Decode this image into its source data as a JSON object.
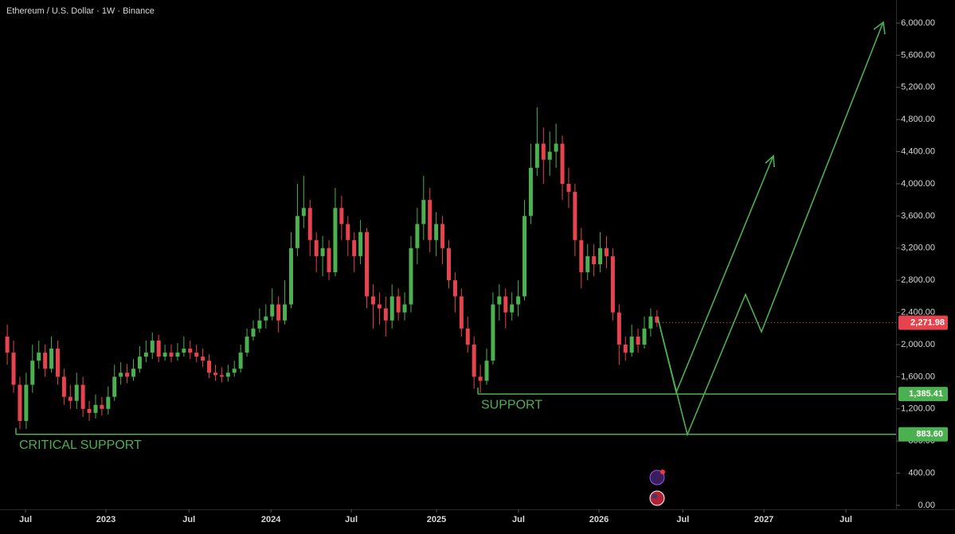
{
  "chart_data": {
    "type": "candlestick",
    "title": "Ethereum / U.S. Dollar · 1W · Binance",
    "up_color": "#4caf50",
    "down_color": "#e5434e",
    "open": [
      2100,
      1900,
      1500,
      1050,
      1500,
      1800,
      1900,
      1700,
      1950,
      1600,
      1350,
      1300,
      1500,
      1200,
      1150,
      1250,
      1200,
      1350,
      1600,
      1650,
      1600,
      1700,
      1850,
      1900,
      2050,
      1850,
      1900,
      1850,
      1900,
      1950,
      1900,
      1850,
      1800,
      1650,
      1620,
      1600,
      1650,
      1700,
      1900,
      2100,
      2200,
      2300,
      2350,
      2500,
      2300,
      2500,
      3200,
      3600,
      3700,
      3300,
      3100,
      3200,
      2900,
      3700,
      3500,
      3300,
      3100,
      3400,
      2600,
      2500,
      2450,
      2300,
      2600,
      2400,
      2500,
      3200,
      3500,
      3800,
      3300,
      3500,
      3200,
      2800,
      2600,
      2200,
      2000,
      1600,
      1550,
      1800,
      2500,
      2600,
      2400,
      2500,
      2600,
      3600,
      4200,
      4500,
      4300,
      4400,
      4500,
      4000,
      3900,
      3300,
      2900,
      3100,
      3000,
      3200,
      3100,
      2400,
      2000,
      1900,
      2100,
      2000,
      2200,
      2350
    ],
    "high": [
      2250,
      2050,
      1600,
      1650,
      2000,
      2050,
      2000,
      2100,
      2050,
      1700,
      1500,
      1650,
      1600,
      1300,
      1380,
      1350,
      1480,
      1750,
      1780,
      1760,
      1820,
      1980,
      2050,
      2150,
      2120,
      2000,
      2000,
      2020,
      2100,
      2050,
      2000,
      1950,
      1880,
      1750,
      1720,
      1750,
      1800,
      2000,
      2200,
      2300,
      2450,
      2500,
      2700,
      2600,
      2800,
      3400,
      4000,
      4100,
      3800,
      3400,
      3350,
      3300,
      3950,
      3850,
      3600,
      3400,
      3550,
      3450,
      2750,
      2650,
      2600,
      2750,
      2700,
      2650,
      3350,
      3700,
      4100,
      3950,
      3650,
      3600,
      3300,
      2900,
      2700,
      2350,
      2100,
      1750,
      1950,
      2650,
      2750,
      2700,
      2650,
      2800,
      3800,
      4500,
      4950,
      4700,
      4650,
      4750,
      4600,
      4200,
      4000,
      3450,
      3250,
      3250,
      3400,
      3350,
      3200,
      2500,
      2100,
      2250,
      2200,
      2350,
      2450,
      2430
    ],
    "low": [
      1750,
      1400,
      950,
      950,
      1400,
      1700,
      1600,
      1650,
      1500,
      1250,
      1200,
      1200,
      1100,
      1050,
      1080,
      1120,
      1130,
      1300,
      1500,
      1520,
      1550,
      1650,
      1780,
      1820,
      1780,
      1800,
      1780,
      1800,
      1850,
      1820,
      1780,
      1720,
      1580,
      1550,
      1530,
      1540,
      1600,
      1650,
      1850,
      2050,
      2150,
      2200,
      2300,
      2150,
      2250,
      2450,
      3100,
      3450,
      3100,
      2900,
      2850,
      2800,
      2850,
      3300,
      3100,
      2900,
      3000,
      2450,
      2200,
      2250,
      2100,
      2200,
      2300,
      2300,
      2400,
      3000,
      3300,
      3150,
      3100,
      3000,
      2700,
      2400,
      2100,
      1900,
      1450,
      1400,
      1500,
      1750,
      2300,
      2200,
      2300,
      2350,
      2550,
      3500,
      4100,
      4000,
      4100,
      4200,
      3800,
      3700,
      3100,
      2700,
      2800,
      2850,
      2900,
      2950,
      2300,
      1750,
      1800,
      1850,
      1900,
      1950,
      2100,
      2220
    ],
    "close": [
      1900,
      1500,
      1050,
      1500,
      1800,
      1900,
      1700,
      1950,
      1600,
      1350,
      1300,
      1500,
      1200,
      1150,
      1250,
      1200,
      1350,
      1600,
      1650,
      1600,
      1700,
      1850,
      1900,
      2050,
      1850,
      1900,
      1850,
      1900,
      1950,
      1900,
      1850,
      1800,
      1650,
      1620,
      1600,
      1650,
      1700,
      1900,
      2100,
      2200,
      2300,
      2350,
      2500,
      2300,
      2500,
      3200,
      3600,
      3700,
      3300,
      3100,
      3200,
      2900,
      3700,
      3500,
      3300,
      3100,
      3400,
      2600,
      2500,
      2450,
      2300,
      2600,
      2400,
      2500,
      3200,
      3500,
      3800,
      3300,
      3500,
      3200,
      2800,
      2600,
      2200,
      2000,
      1600,
      1550,
      1800,
      2500,
      2600,
      2400,
      2500,
      2600,
      3600,
      4200,
      4500,
      4300,
      4400,
      4500,
      4000,
      3900,
      3300,
      2900,
      3100,
      3000,
      3200,
      3100,
      2400,
      2000,
      1900,
      2100,
      2000,
      2200,
      2350,
      2271.98
    ],
    "last_label": "2,271.98",
    "xlim": [
      -1.3,
      282.8
    ],
    "xticks": [
      {
        "value": 6.8,
        "label": "Jul"
      },
      {
        "value": 32.3,
        "label": "2023"
      },
      {
        "value": 58.6,
        "label": "Jul"
      },
      {
        "value": 84.6,
        "label": "2024"
      },
      {
        "value": 110.1,
        "label": "Jul"
      },
      {
        "value": 137.1,
        "label": "2025"
      },
      {
        "value": 163.1,
        "label": "Jul"
      },
      {
        "value": 188.6,
        "label": "2026"
      },
      {
        "value": 215.2,
        "label": "Jul"
      },
      {
        "value": 240.9,
        "label": "2027"
      },
      {
        "value": 266.9,
        "label": "Jul"
      }
    ],
    "ylim": [
      0,
      6000
    ],
    "yticks": [
      {
        "value": 0,
        "label": "0.00"
      },
      {
        "value": 400,
        "label": "400.00"
      },
      {
        "value": 800,
        "label": "800.00"
      },
      {
        "value": 1200,
        "label": "1,200.00"
      },
      {
        "value": 1600,
        "label": "1,600.00"
      },
      {
        "value": 2000,
        "label": "2,000.00"
      },
      {
        "value": 2400,
        "label": "2,400.00"
      },
      {
        "value": 2800,
        "label": "2,800.00"
      },
      {
        "value": 3200,
        "label": "3,200.00"
      },
      {
        "value": 3600,
        "label": "3,600.00"
      },
      {
        "value": 4000,
        "label": "4,000.00"
      },
      {
        "value": 4400,
        "label": "4,400.00"
      },
      {
        "value": 4800,
        "label": "4,800.00"
      },
      {
        "value": 5200,
        "label": "5,200.00"
      },
      {
        "value": 5600,
        "label": "5,600.00"
      },
      {
        "value": 6000,
        "label": "6,000.00"
      }
    ],
    "supports": [
      {
        "text": "SUPPORT",
        "value": 1385.41,
        "value_label": "1,385.41"
      },
      {
        "text": "CRITICAL SUPPORT",
        "value": 883.6,
        "value_label": "883.60"
      }
    ],
    "support_color": "#4caf50"
  }
}
